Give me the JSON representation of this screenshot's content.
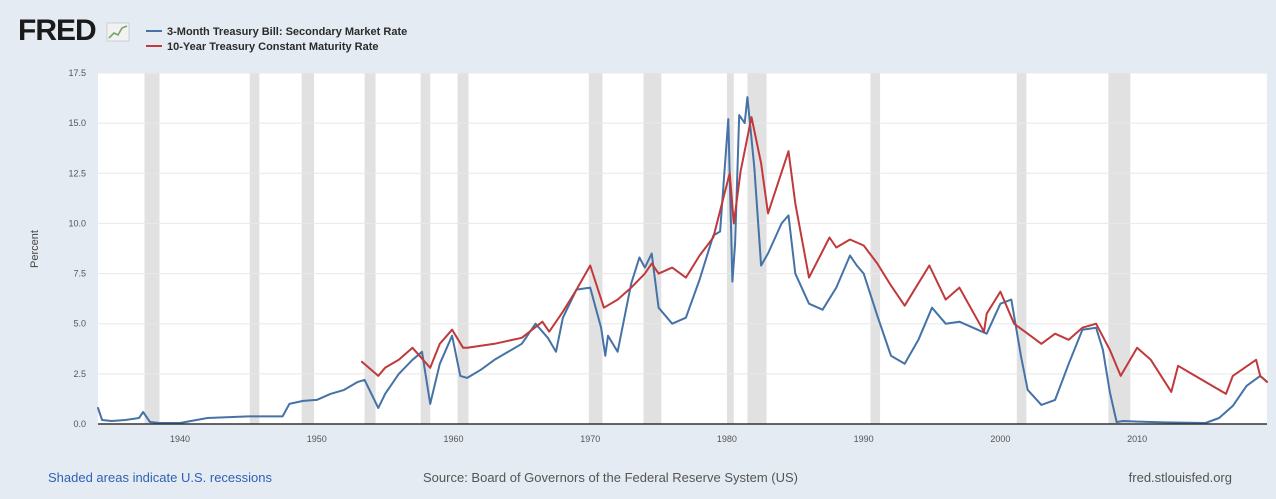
{
  "brand": {
    "logo_text": "FRED",
    "logo_icon": "chart-trend-icon"
  },
  "footer": {
    "recessions_note": "Shaded areas indicate U.S. recessions",
    "source": "Source: Board of Governors of the Federal Reserve System (US)",
    "site": "fred.stlouisfed.org"
  },
  "chart_data": {
    "type": "line",
    "title": "",
    "xlabel": "",
    "ylabel": "Percent",
    "xlim": [
      1934,
      2019.5
    ],
    "ylim": [
      0,
      17.5
    ],
    "yticks": [
      "0.0",
      "2.5",
      "5.0",
      "7.5",
      "10.0",
      "12.5",
      "15.0",
      "17.5"
    ],
    "xticks": [
      "1940",
      "1950",
      "1960",
      "1970",
      "1980",
      "1990",
      "2000",
      "2010"
    ],
    "grid": true,
    "legend": "top-left",
    "recessions": [
      [
        1937.4,
        1938.5
      ],
      [
        1945.1,
        1945.8
      ],
      [
        1948.9,
        1949.8
      ],
      [
        1953.5,
        1954.3
      ],
      [
        1957.6,
        1958.3
      ],
      [
        1960.3,
        1961.1
      ],
      [
        1969.9,
        1970.9
      ],
      [
        1973.9,
        1975.2
      ],
      [
        1980.0,
        1980.5
      ],
      [
        1981.5,
        1982.9
      ],
      [
        1990.5,
        1991.2
      ],
      [
        2001.2,
        2001.9
      ],
      [
        2007.9,
        2009.5
      ]
    ],
    "series": [
      {
        "name": "3-Month Treasury Bill: Secondary Market Rate",
        "color": "#4572a7",
        "x": [
          1934,
          1934.3,
          1935,
          1936,
          1937,
          1937.3,
          1937.8,
          1938.5,
          1940,
          1942,
          1945,
          1947.5,
          1948,
          1949,
          1950,
          1951,
          1952,
          1953,
          1953.5,
          1954.5,
          1955,
          1956,
          1957,
          1957.7,
          1958.3,
          1959,
          1959.9,
          1960.5,
          1961,
          1962,
          1963,
          1964,
          1965,
          1966,
          1966.9,
          1967.5,
          1968,
          1969,
          1970,
          1970.8,
          1971.1,
          1971.3,
          1972,
          1973,
          1973.6,
          1974,
          1974.5,
          1975,
          1976,
          1977,
          1978,
          1979,
          1979.5,
          1980.1,
          1980.4,
          1980.6,
          1980.9,
          1981.3,
          1981.5,
          1982,
          1982.5,
          1983,
          1984,
          1984.5,
          1985,
          1986,
          1987,
          1988,
          1989,
          1989.5,
          1990,
          1991,
          1992,
          1993,
          1994,
          1995,
          1996,
          1997,
          1998,
          1999,
          2000,
          2000.8,
          2001.5,
          2002,
          2003,
          2004,
          2005,
          2006,
          2007,
          2007.5,
          2008,
          2008.5,
          2009,
          2010,
          2012,
          2015,
          2016,
          2017,
          2018,
          2019,
          2019.5
        ],
        "values": [
          0.8,
          0.2,
          0.15,
          0.2,
          0.3,
          0.6,
          0.1,
          0.05,
          0.05,
          0.3,
          0.38,
          0.38,
          1.0,
          1.15,
          1.2,
          1.5,
          1.7,
          2.1,
          2.2,
          0.8,
          1.5,
          2.5,
          3.2,
          3.6,
          1.0,
          3.0,
          4.4,
          2.4,
          2.3,
          2.7,
          3.2,
          3.6,
          4.0,
          5.0,
          4.3,
          3.6,
          5.3,
          6.7,
          6.8,
          4.8,
          3.4,
          4.4,
          3.6,
          7.0,
          8.3,
          7.8,
          8.5,
          5.8,
          5.0,
          5.3,
          7.2,
          9.4,
          9.6,
          15.2,
          7.1,
          9.0,
          15.4,
          15.0,
          16.3,
          12.8,
          7.9,
          8.5,
          10.0,
          10.4,
          7.5,
          6.0,
          5.7,
          6.8,
          8.4,
          7.9,
          7.5,
          5.4,
          3.4,
          3.0,
          4.2,
          5.8,
          5.0,
          5.1,
          4.8,
          4.5,
          6.0,
          6.2,
          3.4,
          1.7,
          0.95,
          1.2,
          3.0,
          4.7,
          4.8,
          3.7,
          1.6,
          0.1,
          0.15,
          0.12,
          0.08,
          0.05,
          0.3,
          0.9,
          1.9,
          2.4,
          2.1
        ]
      },
      {
        "name": "10-Year Treasury Constant Maturity Rate",
        "color": "#c0393b",
        "x": [
          1953.3,
          1954.5,
          1955,
          1956,
          1957,
          1958.3,
          1959,
          1959.9,
          1960.7,
          1961,
          1962,
          1963,
          1965,
          1966.5,
          1967,
          1968,
          1969,
          1970,
          1971,
          1972,
          1973,
          1974,
          1974.5,
          1975,
          1976,
          1977,
          1978,
          1979,
          1980.2,
          1980.5,
          1981,
          1981.8,
          1982.5,
          1983,
          1984.5,
          1985,
          1986,
          1987.5,
          1988,
          1989,
          1990,
          1991,
          1992,
          1993,
          1994.8,
          1996,
          1997,
          1998.8,
          1999,
          2000,
          2001,
          2002,
          2003,
          2004,
          2005,
          2006,
          2007,
          2008,
          2008.8,
          2010,
          2011,
          2012.5,
          2013,
          2014,
          2015,
          2016.5,
          2017,
          2018.7,
          2019,
          2019.5
        ],
        "values": [
          3.1,
          2.4,
          2.8,
          3.2,
          3.8,
          2.8,
          4.0,
          4.7,
          3.8,
          3.8,
          3.9,
          4.0,
          4.3,
          5.1,
          4.6,
          5.6,
          6.7,
          7.9,
          5.8,
          6.2,
          6.8,
          7.5,
          8.0,
          7.5,
          7.8,
          7.3,
          8.4,
          9.3,
          12.5,
          10.0,
          12.6,
          15.3,
          13.0,
          10.5,
          13.6,
          11.0,
          7.3,
          9.3,
          8.8,
          9.2,
          8.9,
          8.0,
          6.9,
          5.9,
          7.9,
          6.2,
          6.8,
          4.6,
          5.5,
          6.6,
          5.0,
          4.5,
          4.0,
          4.5,
          4.2,
          4.8,
          5.0,
          3.7,
          2.4,
          3.8,
          3.2,
          1.6,
          2.9,
          2.5,
          2.1,
          1.5,
          2.4,
          3.2,
          2.4,
          2.1
        ]
      }
    ]
  }
}
